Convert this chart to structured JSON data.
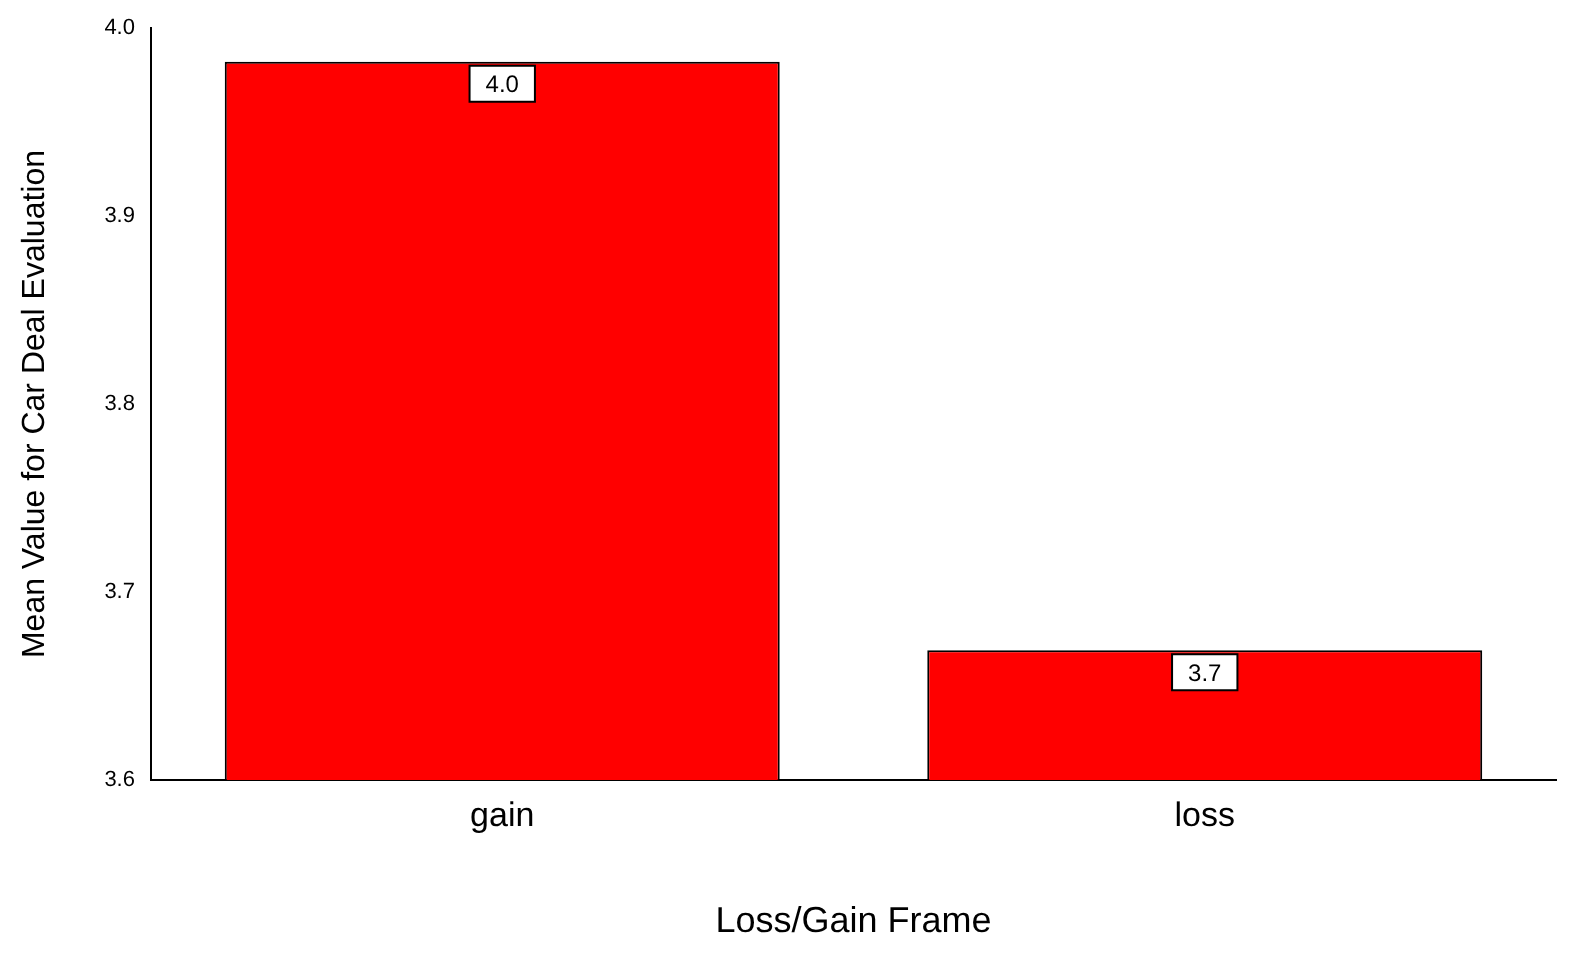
{
  "chart_data": {
    "type": "bar",
    "xlabel": "Loss/Gain Frame",
    "ylabel": "Mean Value for Car Deal Evaluation",
    "categories": [
      "gain",
      "loss"
    ],
    "values": [
      3.982,
      3.669
    ],
    "value_labels": [
      "4.0",
      "3.7"
    ],
    "color": "#ff0000",
    "ylim": [
      3.6,
      4.0
    ],
    "yticks": [
      {
        "value": 3.6,
        "label": "3.6"
      },
      {
        "value": 3.7,
        "label": "3.7"
      },
      {
        "value": 3.8,
        "label": "3.8"
      },
      {
        "value": 3.9,
        "label": "3.9"
      },
      {
        "value": 4.0,
        "label": "4.0"
      }
    ],
    "grid": false,
    "legend": false
  }
}
